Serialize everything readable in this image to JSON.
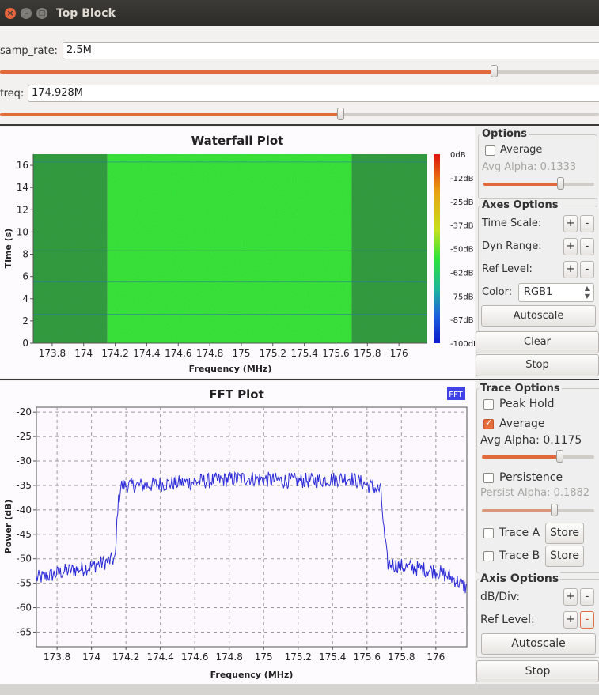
{
  "window": {
    "title": "Top Block"
  },
  "controls": {
    "samp_rate": {
      "label": "samp_rate:",
      "value": "2.5M",
      "slider": 0.825
    },
    "freq": {
      "label": "freq:",
      "value": "174.928M",
      "slider": 0.57
    }
  },
  "waterfall": {
    "title": "Waterfall Plot",
    "xlabel": "Frequency (MHz)",
    "ylabel": "Time (s)",
    "xticks": [
      "173.8",
      "174",
      "174.2",
      "174.4",
      "174.6",
      "174.8",
      "175",
      "175.2",
      "175.4",
      "175.6",
      "175.8",
      "176"
    ],
    "yticks": [
      "0",
      "2",
      "4",
      "6",
      "8",
      "10",
      "12",
      "14",
      "16"
    ],
    "colorbar": [
      "0dB",
      "-12dB",
      "-25dB",
      "-37dB",
      "-50dB",
      "-62dB",
      "-75dB",
      "-87dB",
      "-100dB"
    ]
  },
  "waterfall_options": {
    "options_title": "Options",
    "average_label": "Average",
    "average_checked": false,
    "avg_alpha_label": "Avg Alpha: 0.1333",
    "avg_alpha": 0.1333,
    "axes_title": "Axes Options",
    "time_scale": "Time Scale:",
    "dyn_range": "Dyn Range:",
    "ref_level": "Ref Level:",
    "color_label": "Color:",
    "color_value": "RGB1",
    "autoscale": "Autoscale",
    "clear": "Clear",
    "stop": "Stop",
    "plus": "+",
    "minus": "-"
  },
  "fft": {
    "title": "FFT Plot",
    "legend": "FFT",
    "xlabel": "Frequency (MHz)",
    "ylabel": "Power (dB)",
    "xticks": [
      "173.8",
      "174",
      "174.2",
      "174.4",
      "174.6",
      "174.8",
      "175",
      "175.2",
      "175.4",
      "175.6",
      "175.8",
      "176"
    ],
    "yticks": [
      "-20",
      "-25",
      "-30",
      "-35",
      "-40",
      "-45",
      "-50",
      "-55",
      "-60",
      "-65"
    ]
  },
  "fft_options": {
    "trace_title": "Trace Options",
    "peak_hold": "Peak Hold",
    "peak_hold_checked": false,
    "average": "Average",
    "average_checked": true,
    "avg_alpha_label": "Avg Alpha: 0.1175",
    "avg_alpha": 0.1175,
    "persistence": "Persistence",
    "persistence_checked": false,
    "persist_alpha_label": "Persist Alpha: 0.1882",
    "persist_alpha": 0.1882,
    "trace_a": "Trace A",
    "trace_b": "Trace B",
    "store": "Store",
    "axis_title": "Axis Options",
    "db_div": "dB/Div:",
    "ref_level": "Ref Level:",
    "autoscale": "Autoscale",
    "stop": "Stop",
    "plus": "+",
    "minus": "-"
  },
  "colors": {
    "accent": "#e06a3a",
    "trace": "#2b2bd9",
    "waterfall_edge": "#2f9a3f",
    "waterfall_center": "#35e638"
  },
  "chart_data": [
    {
      "type": "heatmap",
      "title": "Waterfall Plot",
      "xlabel": "Frequency (MHz)",
      "ylabel": "Time (s)",
      "xlim": [
        173.68,
        176.18
      ],
      "ylim": [
        0,
        17
      ],
      "zlim_dB": [
        -100,
        0
      ],
      "bands": [
        {
          "from": 173.68,
          "to": 174.15,
          "level_dB": -55
        },
        {
          "from": 174.15,
          "to": 175.7,
          "level_dB": -35
        },
        {
          "from": 175.7,
          "to": 176.18,
          "level_dB": -55
        }
      ]
    },
    {
      "type": "line",
      "title": "FFT Plot",
      "xlabel": "Frequency (MHz)",
      "ylabel": "Power (dB)",
      "xlim": [
        173.68,
        176.18
      ],
      "ylim": [
        -68,
        -19
      ],
      "grid": true,
      "legend": "top-right",
      "series": [
        {
          "name": "FFT",
          "x": [
            173.68,
            173.75,
            173.85,
            173.95,
            174.05,
            174.14,
            174.15,
            174.17,
            174.3,
            174.5,
            174.7,
            174.9,
            175.1,
            175.3,
            175.5,
            175.68,
            175.7,
            175.72,
            175.8,
            175.9,
            176.0,
            176.1,
            176.18
          ],
          "y": [
            -54,
            -53.5,
            -52.5,
            -52,
            -51,
            -50,
            -40,
            -35,
            -35,
            -34.5,
            -34,
            -33.5,
            -34,
            -34,
            -33.5,
            -36,
            -45,
            -51,
            -51.5,
            -52,
            -52.5,
            -54,
            -56
          ]
        }
      ]
    }
  ]
}
